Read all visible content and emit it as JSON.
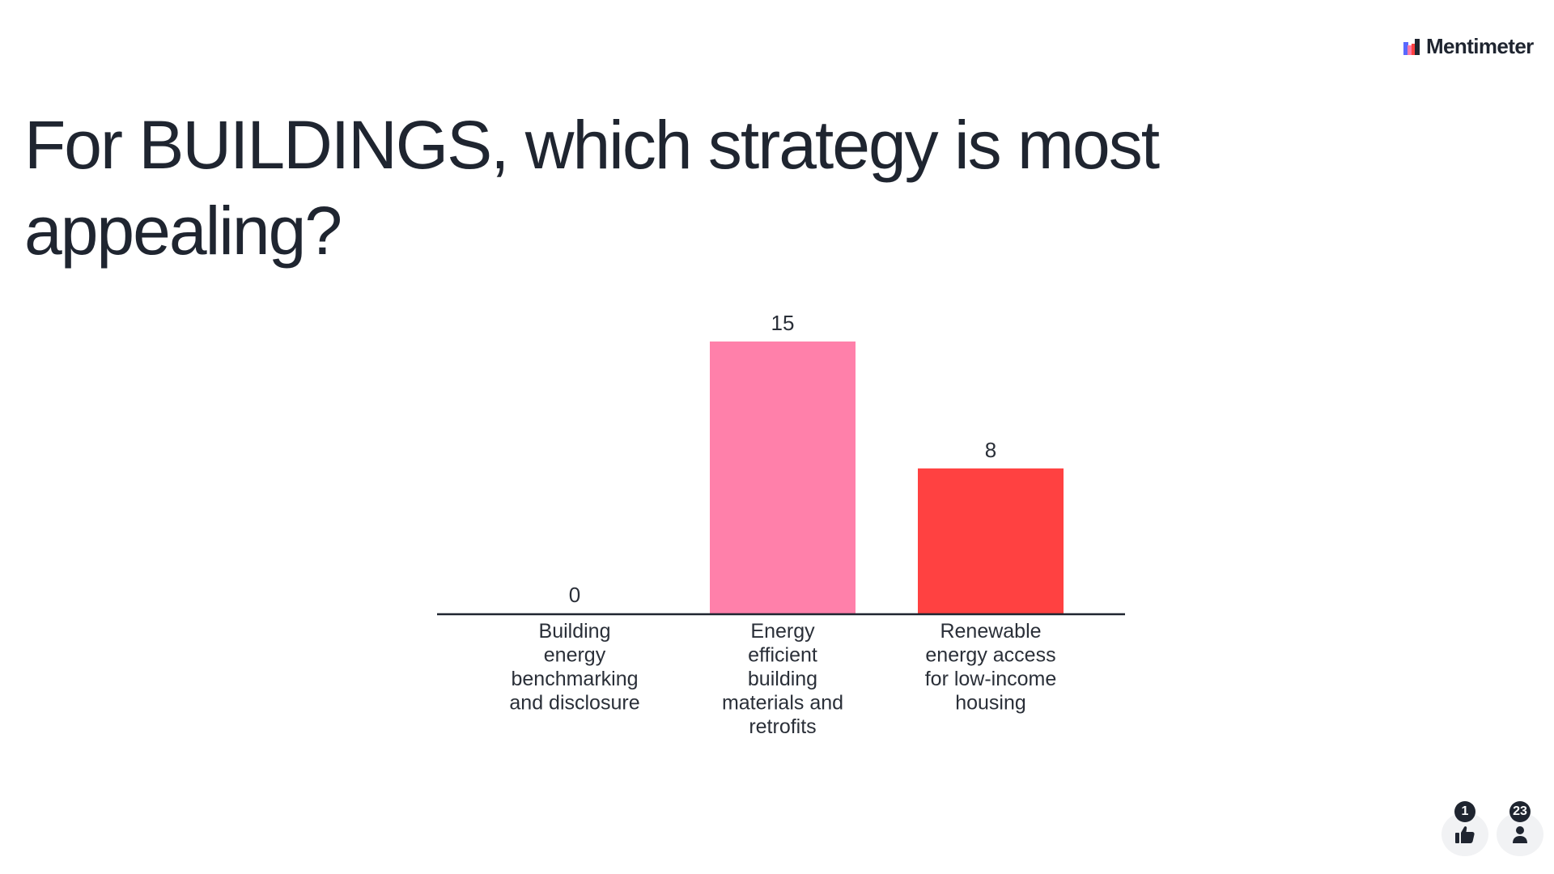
{
  "brand": {
    "name": "Mentimeter",
    "logo_icon": "mentimeter-logo-icon",
    "logo_colors": [
      "#5969ff",
      "#ff7aa6",
      "#ff4141",
      "#1f2530"
    ]
  },
  "question": {
    "title": "For BUILDINGS, which strategy is most appealing?"
  },
  "chart_data": {
    "type": "bar",
    "categories": [
      "Building energy benchmarking and disclosure",
      "Energy efficient building materials and retrofits",
      "Renewable energy access for low-income housing"
    ],
    "category_lines": [
      [
        "Building",
        "energy",
        "benchmarking",
        "and disclosure"
      ],
      [
        "Energy",
        "efficient",
        "building",
        "materials and",
        "retrofits"
      ],
      [
        "Renewable",
        "energy access",
        "for low-income",
        "housing"
      ]
    ],
    "values": [
      0,
      15,
      8
    ],
    "value_labels": [
      "0",
      "15",
      "8"
    ],
    "colors": [
      "#5969ff",
      "#ff80aa",
      "#ff4141"
    ],
    "ylim": [
      0,
      15
    ],
    "grid": false,
    "legend": "none"
  },
  "footer": {
    "reactions": {
      "count": "1",
      "icon": "thumbs-up-icon"
    },
    "participants": {
      "count": "23",
      "icon": "person-icon"
    }
  }
}
